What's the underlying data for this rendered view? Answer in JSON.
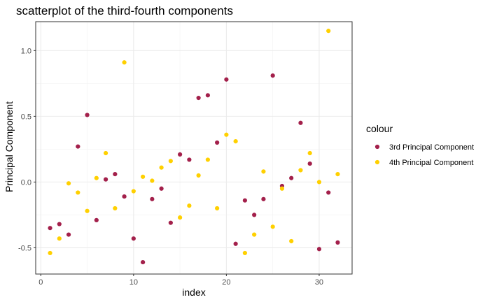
{
  "chart_data": {
    "type": "scatter",
    "title": "scatterplot of the third-fourth components",
    "xlabel": "index",
    "ylabel": "Principal Component",
    "xlim": [
      -0.55,
      33.55
    ],
    "ylim": [
      -0.7,
      1.22
    ],
    "x_ticks": [
      0,
      10,
      20,
      30
    ],
    "x_tick_labels": [
      "0",
      "10",
      "20",
      "30"
    ],
    "y_ticks": [
      -0.5,
      0.0,
      0.5,
      1.0
    ],
    "y_tick_labels": [
      "-0.5",
      "0.0",
      "0.5",
      "1.0"
    ],
    "grid": true,
    "legend": {
      "title": "colour",
      "position": "right"
    },
    "series": [
      {
        "name": "3rd Principal Component",
        "color": "#A3204B",
        "x": [
          1,
          2,
          3,
          4,
          5,
          6,
          7,
          8,
          9,
          10,
          11,
          12,
          13,
          14,
          15,
          16,
          17,
          18,
          19,
          20,
          21,
          22,
          23,
          24,
          25,
          26,
          27,
          28,
          29,
          30,
          31,
          32
        ],
        "values": [
          -0.35,
          -0.32,
          -0.4,
          0.27,
          0.51,
          -0.29,
          0.02,
          0.06,
          -0.11,
          -0.43,
          -0.61,
          -0.13,
          -0.05,
          -0.31,
          0.21,
          0.17,
          0.64,
          0.66,
          0.3,
          0.78,
          -0.47,
          -0.14,
          -0.25,
          -0.13,
          0.81,
          -0.03,
          0.03,
          0.45,
          0.14,
          -0.51,
          -0.08,
          -0.46
        ]
      },
      {
        "name": "4th Principal Component",
        "color": "#FFD000",
        "x": [
          1,
          2,
          3,
          4,
          5,
          6,
          7,
          8,
          9,
          10,
          11,
          12,
          13,
          14,
          15,
          16,
          17,
          18,
          19,
          20,
          21,
          22,
          23,
          24,
          25,
          26,
          27,
          28,
          29,
          30,
          31,
          32
        ],
        "values": [
          -0.54,
          -0.43,
          -0.01,
          -0.08,
          -0.22,
          0.03,
          0.22,
          -0.2,
          0.91,
          -0.07,
          0.04,
          0.01,
          0.11,
          0.16,
          -0.27,
          -0.18,
          0.05,
          0.17,
          -0.2,
          0.36,
          0.31,
          -0.54,
          -0.4,
          0.08,
          -0.34,
          -0.05,
          -0.45,
          0.09,
          0.22,
          0.0,
          1.15,
          0.06
        ]
      }
    ]
  }
}
